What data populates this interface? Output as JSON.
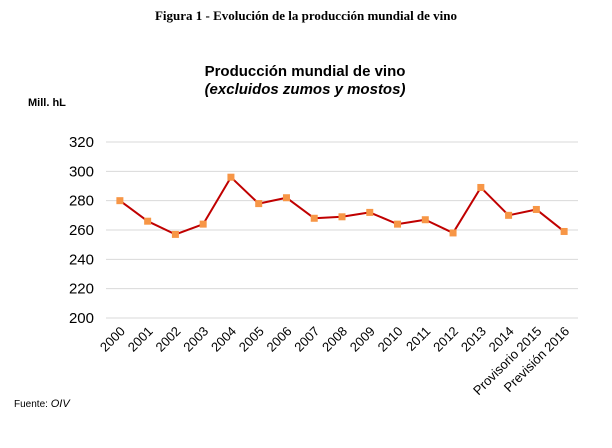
{
  "figure_caption": "Figura 1 - Evolución de la producción mundial de vino",
  "source_label": "Fuente:",
  "source_value": "OIV",
  "chart_data": {
    "type": "line",
    "title": "Producción mundial de vino",
    "subtitle": "(excluidos zumos y mostos)",
    "ylabel": "Mill. hL",
    "xlabel": "",
    "ylim": [
      200,
      320
    ],
    "yticks": [
      200,
      220,
      240,
      260,
      280,
      300,
      320
    ],
    "grid": true,
    "categories": [
      "2000",
      "2001",
      "2002",
      "2003",
      "2004",
      "2005",
      "2006",
      "2007",
      "2008",
      "2009",
      "2010",
      "2011",
      "2012",
      "2013",
      "2014",
      "Provisorio 2015",
      "Previsión 2016"
    ],
    "series": [
      {
        "name": "",
        "values": [
          280,
          266,
          257,
          264,
          296,
          278,
          282,
          268,
          269,
          272,
          264,
          267,
          258,
          289,
          270,
          274,
          259
        ],
        "line_color": "#C00000",
        "marker_color": "#F79646"
      }
    ]
  }
}
